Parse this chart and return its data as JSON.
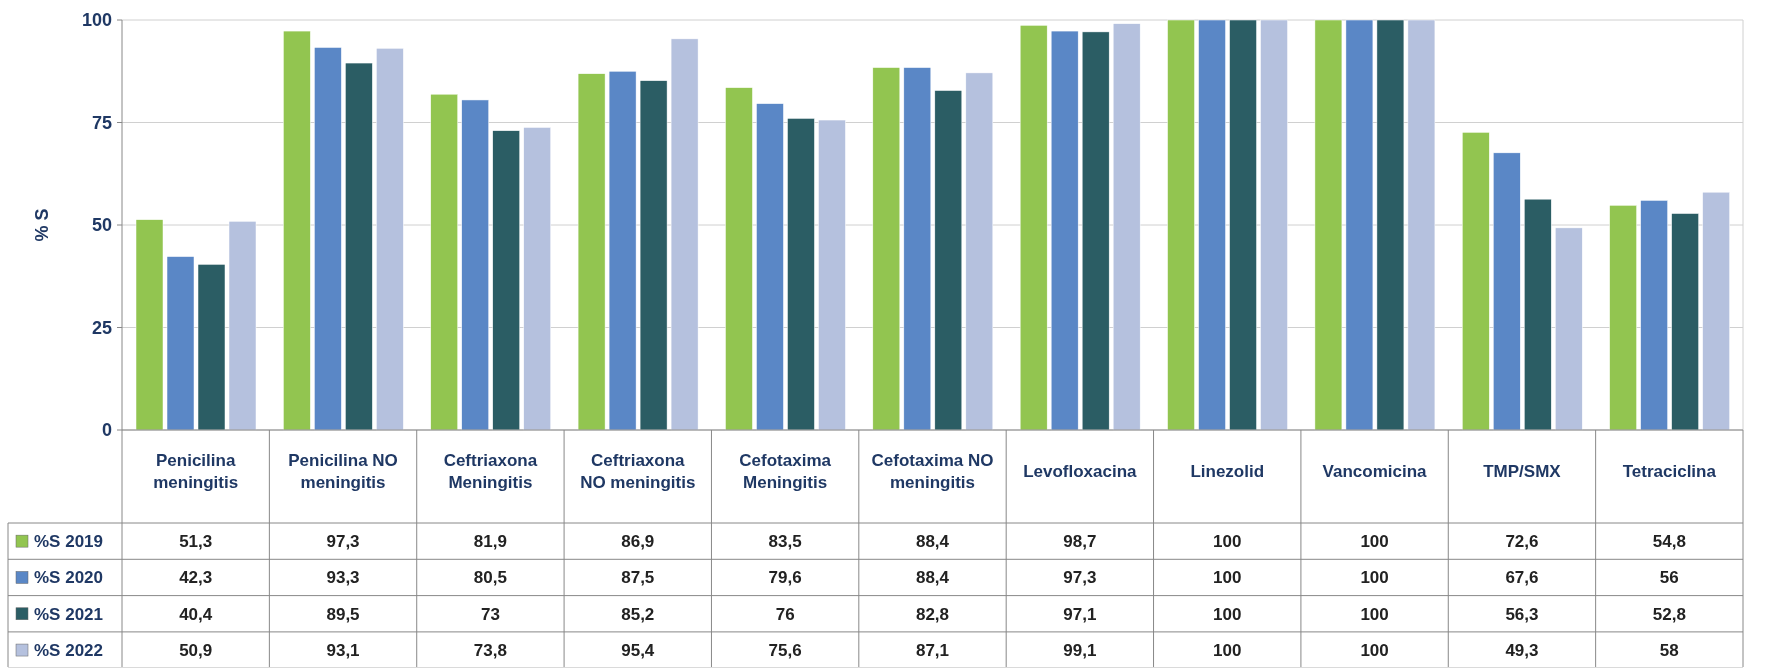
{
  "chart_data": {
    "type": "bar",
    "ylabel": "% S",
    "categories": [
      "Penicilina meningitis",
      "Penicilina NO meningitis",
      "Ceftriaxona Meningitis",
      "Ceftriaxona NO meningitis",
      "Cefotaxima Meningitis",
      "Cefotaxima NO meningitis",
      "Levofloxacina",
      "Linezolid",
      "Vancomicina",
      "TMP/SMX",
      "Tetraciclina"
    ],
    "series": [
      {
        "name": "%S 2019",
        "color": "#92c550",
        "values": [
          51.3,
          97.3,
          81.9,
          86.9,
          83.5,
          88.4,
          98.7,
          100,
          100,
          72.6,
          54.8
        ],
        "value_labels": [
          "51,3",
          "97,3",
          "81,9",
          "86,9",
          "83,5",
          "88,4",
          "98,7",
          "100",
          "100",
          "72,6",
          "54,8"
        ]
      },
      {
        "name": "%S 2020",
        "color": "#5a87c6",
        "values": [
          42.3,
          93.3,
          80.5,
          87.5,
          79.6,
          88.4,
          97.3,
          100,
          100,
          67.6,
          56
        ],
        "value_labels": [
          "42,3",
          "93,3",
          "80,5",
          "87,5",
          "79,6",
          "88,4",
          "97,3",
          "100",
          "100",
          "67,6",
          "56"
        ]
      },
      {
        "name": "%S 2021",
        "color": "#2b5d64",
        "values": [
          40.4,
          89.5,
          73,
          85.2,
          76,
          82.8,
          97.1,
          100,
          100,
          56.3,
          52.8
        ],
        "value_labels": [
          "40,4",
          "89,5",
          "73",
          "85,2",
          "76",
          "82,8",
          "97,1",
          "100",
          "100",
          "56,3",
          "52,8"
        ]
      },
      {
        "name": "%S 2022",
        "color": "#b5c1de",
        "values": [
          50.9,
          93.1,
          73.8,
          95.4,
          75.6,
          87.1,
          99.1,
          100,
          100,
          49.3,
          58
        ],
        "value_labels": [
          "50,9",
          "93,1",
          "73,8",
          "95,4",
          "75,6",
          "87,1",
          "99,1",
          "100",
          "100",
          "49,3",
          "58"
        ]
      }
    ],
    "ylim": [
      0,
      100
    ],
    "yticks": [
      0,
      25,
      50,
      75,
      100
    ],
    "grid": "y",
    "legend": "bottom"
  }
}
